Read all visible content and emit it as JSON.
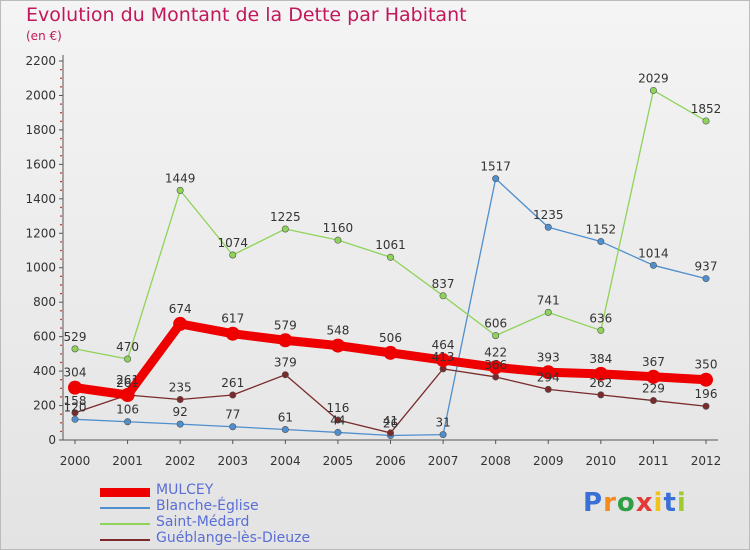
{
  "title": "Evolution du Montant de la Dette par Habitant",
  "subtitle": "(en €)",
  "brand": {
    "text": "Proxiti",
    "letter_colors": [
      "#3a6fd6",
      "#f28c1c",
      "#2f9e44",
      "#e53935",
      "#f2c11c",
      "#3a6fd6",
      "#9ccc2f"
    ]
  },
  "chart_data": {
    "type": "line",
    "title": "Evolution du Montant de la Dette par Habitant",
    "subtitle": "(en €)",
    "xlabel": "",
    "ylabel": "",
    "x": [
      "2000",
      "2001",
      "2002",
      "2003",
      "2004",
      "2005",
      "2006",
      "2007",
      "2008",
      "2009",
      "2010",
      "2011",
      "2012"
    ],
    "ylim": [
      0,
      2200
    ],
    "yticks": [
      0,
      200,
      400,
      600,
      800,
      1000,
      1200,
      1400,
      1600,
      1800,
      2000,
      2200
    ],
    "grid": false,
    "legend_position": "bottom-left",
    "series": [
      {
        "name": "Blanche-Église",
        "color": "#4f8fcd",
        "values": [
          120,
          106,
          92,
          77,
          61,
          44,
          26,
          31,
          1517,
          1235,
          1152,
          1014,
          937
        ],
        "labels": [
          "120",
          "106",
          "92",
          "77",
          "61",
          "44",
          "26",
          "31",
          "1517",
          "1235",
          "1152",
          "1014",
          "937"
        ]
      },
      {
        "name": "Saint-Médard",
        "color": "#8ed35a",
        "values": [
          529,
          470,
          1449,
          1074,
          1225,
          1160,
          1061,
          837,
          606,
          741,
          636,
          2029,
          1852
        ],
        "labels": [
          "529",
          "470",
          "1449",
          "1074",
          "1225",
          "1160",
          "1061",
          "837",
          "606",
          "741",
          "636",
          "2029",
          "1852"
        ]
      },
      {
        "name": "Guéblange-lès-Dieuze",
        "color": "#7a2a2a",
        "values": [
          158,
          261,
          235,
          261,
          379,
          116,
          41,
          413,
          366,
          294,
          262,
          229,
          196
        ],
        "labels": [
          "158",
          "261",
          "235",
          "261",
          "379",
          "116",
          "41",
          "413",
          "366",
          "294",
          "262",
          "229",
          "196"
        ]
      },
      {
        "name": "MULCEY",
        "color": "#ee0000",
        "values": [
          304,
          261,
          674,
          617,
          579,
          548,
          506,
          464,
          422,
          393,
          384,
          367,
          350
        ],
        "labels": [
          "304",
          "261",
          "674",
          "617",
          "579",
          "548",
          "506",
          "464",
          "422",
          "393",
          "384",
          "367",
          "350"
        ]
      }
    ]
  },
  "legend": [
    {
      "name": "MULCEY",
      "color": "#ee0000"
    },
    {
      "name": "Blanche-Église",
      "color": "#4f8fcd"
    },
    {
      "name": "Saint-Médard",
      "color": "#8ed35a"
    },
    {
      "name": "Guéblange-lès-Dieuze",
      "color": "#7a2a2a"
    }
  ]
}
